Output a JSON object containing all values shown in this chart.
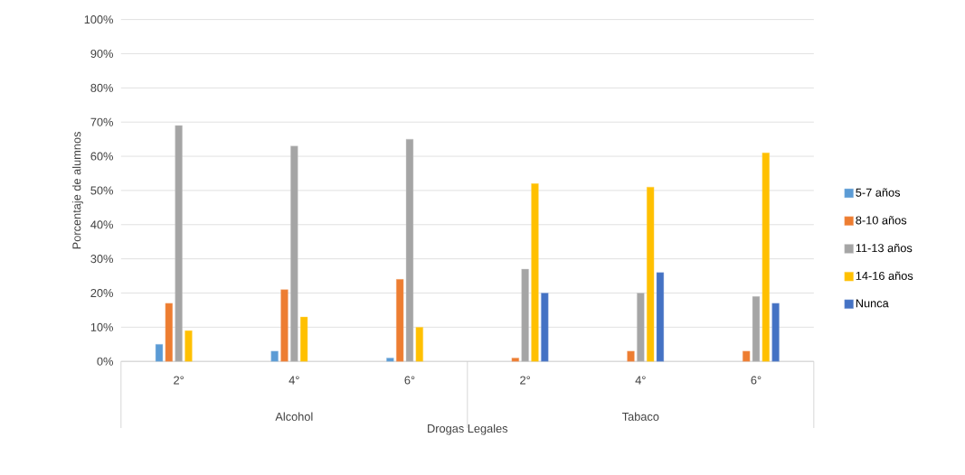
{
  "chart_data": {
    "type": "bar",
    "xlabel": "Drogas Legales",
    "ylabel": "Porcentaje de alumnos",
    "categories": [
      "2°",
      "4°",
      "6°",
      "2°",
      "4°",
      "6°"
    ],
    "annotations": [
      "Alcohol",
      "Tabaco"
    ],
    "series": [
      {
        "name": "5-7 años",
        "color": "#5b9bd5",
        "values": [
          5,
          3,
          1,
          null,
          null,
          null
        ]
      },
      {
        "name": "8-10 años",
        "color": "#ed7d31",
        "values": [
          17,
          21,
          24,
          1,
          3,
          3
        ]
      },
      {
        "name": "11-13 años",
        "color": "#a5a5a5",
        "values": [
          69,
          63,
          65,
          27,
          20,
          19
        ]
      },
      {
        "name": "14-16 años",
        "color": "#ffc000",
        "values": [
          9,
          13,
          10,
          52,
          51,
          61
        ]
      },
      {
        "name": "Nunca",
        "color": "#4472c4",
        "values": [
          null,
          null,
          null,
          20,
          26,
          17
        ]
      }
    ],
    "ylim": [
      0,
      100
    ],
    "yticks": [
      {
        "value": 0,
        "label": "0%"
      },
      {
        "value": 10,
        "label": "10%"
      },
      {
        "value": 20,
        "label": "20%"
      },
      {
        "value": 30,
        "label": "30%"
      },
      {
        "value": 40,
        "label": "40%"
      },
      {
        "value": 50,
        "label": "50%"
      },
      {
        "value": 60,
        "label": "60%"
      },
      {
        "value": 70,
        "label": "70%"
      },
      {
        "value": 80,
        "label": "80%"
      },
      {
        "value": 90,
        "label": "90%"
      },
      {
        "value": 100,
        "label": "100%"
      }
    ],
    "grid": "y",
    "legend": "right"
  }
}
